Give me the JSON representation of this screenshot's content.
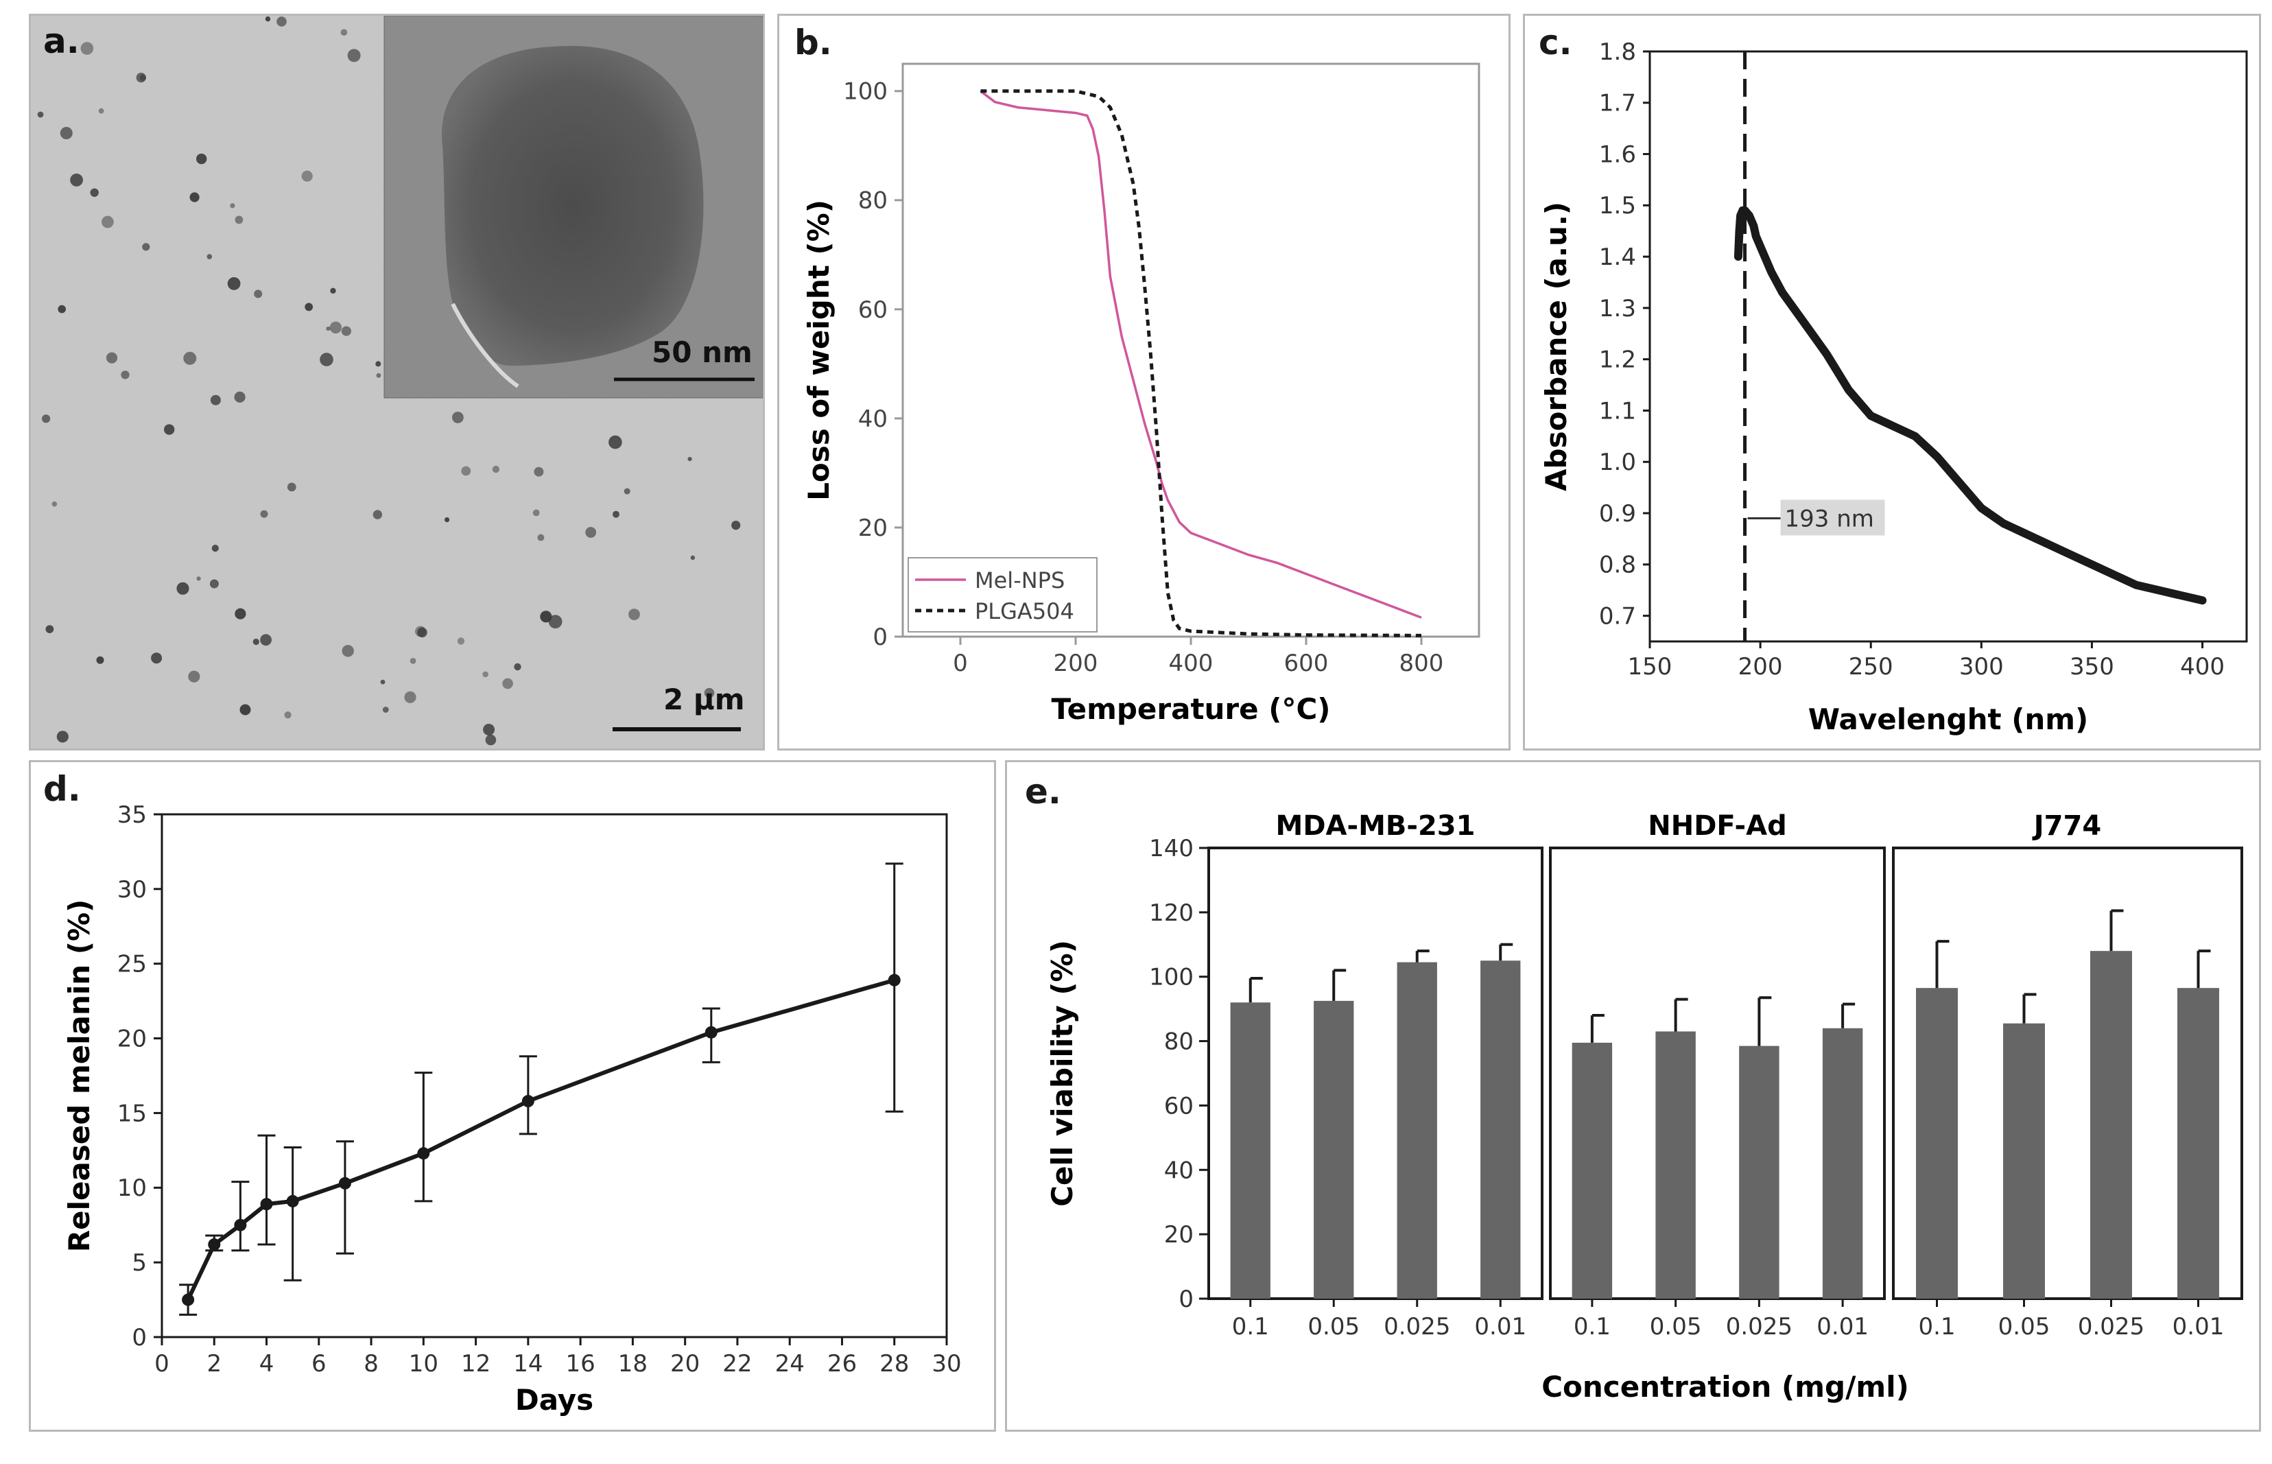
{
  "panels": {
    "a": {
      "label": "a.",
      "main_scale_label": "2 µm",
      "inset_scale_label": "50 nm"
    }
  },
  "chart_data": [
    {
      "id": "b",
      "panel_label": "b.",
      "type": "line",
      "title": "",
      "xlabel": "Temperature (°C)",
      "ylabel": "Loss of weight (%)",
      "xlim": [
        -100,
        900
      ],
      "ylim": [
        0,
        105
      ],
      "xticks": [
        0,
        200,
        400,
        600,
        800
      ],
      "yticks": [
        0,
        20,
        40,
        60,
        80,
        100
      ],
      "legend_position": "bottom-left",
      "series": [
        {
          "name": "Mel-NPS",
          "color": "#d0579b",
          "style": "solid",
          "x": [
            35,
            60,
            100,
            150,
            200,
            220,
            230,
            240,
            250,
            260,
            280,
            300,
            320,
            340,
            350,
            360,
            380,
            400,
            450,
            500,
            550,
            600,
            650,
            700,
            750,
            800
          ],
          "y": [
            100,
            98,
            97,
            96.5,
            96,
            95.5,
            93,
            88,
            78,
            66,
            55,
            47,
            39,
            32,
            28,
            25,
            21,
            19,
            17,
            15,
            13.5,
            11.5,
            9.5,
            7.5,
            5.5,
            3.5
          ]
        },
        {
          "name": "PLGA504",
          "color": "#1a1a1a",
          "style": "dashed",
          "x": [
            35,
            100,
            200,
            240,
            260,
            280,
            300,
            310,
            320,
            330,
            340,
            350,
            360,
            370,
            380,
            400,
            500,
            600,
            800
          ],
          "y": [
            100,
            100,
            100,
            99,
            97,
            92,
            83,
            75,
            64,
            52,
            38,
            22,
            8,
            3,
            1.5,
            1,
            0.5,
            0.3,
            0.2
          ]
        }
      ]
    },
    {
      "id": "c",
      "panel_label": "c.",
      "type": "line",
      "title": "",
      "xlabel": "Wavelenght (nm)",
      "ylabel": "Absorbance (a.u.)",
      "xlim": [
        150,
        420
      ],
      "ylim": [
        0.65,
        1.8
      ],
      "xticks": [
        150,
        200,
        250,
        300,
        350,
        400
      ],
      "yticks": [
        0.7,
        0.8,
        0.9,
        1.0,
        1.1,
        1.2,
        1.3,
        1.4,
        1.5,
        1.6,
        1.7,
        1.8
      ],
      "ytick_labels": [
        "0.7",
        "0.8",
        "0.9",
        "1.0",
        "1.1",
        "1.2",
        "1.3",
        "1.4",
        "1.5",
        "1.6",
        "1.7",
        "1.8"
      ],
      "vline_x": 193,
      "annotation": "193 nm",
      "series": [
        {
          "name": "Absorbance",
          "color": "#1a1a1a",
          "x": [
            190,
            190.5,
            191,
            192,
            193,
            194,
            195,
            196,
            197,
            198,
            200,
            205,
            210,
            220,
            230,
            240,
            250,
            260,
            270,
            280,
            290,
            300,
            310,
            320,
            330,
            340,
            350,
            360,
            370,
            380,
            390,
            400
          ],
          "y": [
            1.4,
            1.45,
            1.48,
            1.49,
            1.49,
            1.485,
            1.48,
            1.47,
            1.46,
            1.44,
            1.42,
            1.37,
            1.33,
            1.27,
            1.21,
            1.14,
            1.09,
            1.07,
            1.05,
            1.01,
            0.96,
            0.91,
            0.88,
            0.86,
            0.84,
            0.82,
            0.8,
            0.78,
            0.76,
            0.75,
            0.74,
            0.73
          ]
        }
      ]
    },
    {
      "id": "d",
      "panel_label": "d.",
      "type": "line",
      "title": "",
      "xlabel": "Days",
      "ylabel": "Released melanin (%)",
      "xlim": [
        0,
        30
      ],
      "ylim": [
        0,
        35
      ],
      "xticks": [
        0,
        2,
        4,
        6,
        8,
        10,
        12,
        14,
        16,
        18,
        20,
        22,
        24,
        26,
        28,
        30
      ],
      "yticks": [
        0,
        5,
        10,
        15,
        20,
        25,
        30,
        35
      ],
      "series": [
        {
          "name": "Released melanin",
          "color": "#1a1a1a",
          "x": [
            1,
            2,
            3,
            4,
            5,
            7,
            10,
            14,
            21,
            28
          ],
          "y": [
            2.5,
            6.2,
            7.5,
            8.9,
            9.1,
            10.3,
            12.3,
            15.8,
            20.4,
            23.9
          ],
          "err_low": [
            1.5,
            5.8,
            5.8,
            6.2,
            3.8,
            5.6,
            9.1,
            13.6,
            18.4,
            15.1
          ],
          "err_high": [
            3.5,
            6.8,
            10.4,
            13.5,
            12.7,
            13.1,
            17.7,
            18.8,
            22.0,
            31.7
          ]
        }
      ]
    },
    {
      "id": "e",
      "panel_label": "e.",
      "type": "bar",
      "title": "",
      "xlabel": "Concentration (mg/ml)",
      "ylabel": "Cell viability (%)",
      "ylim": [
        0,
        140
      ],
      "yticks": [
        0,
        20,
        40,
        60,
        80,
        100,
        120,
        140
      ],
      "categories": [
        "0.1",
        "0.05",
        "0.025",
        "0.01"
      ],
      "bar_color": "#666666",
      "series": [
        {
          "name": "MDA-MB-231",
          "values": [
            92,
            92.5,
            104.5,
            105
          ],
          "errors": [
            7.5,
            9.5,
            3.5,
            5
          ]
        },
        {
          "name": "NHDF-Ad",
          "values": [
            79.5,
            83,
            78.5,
            84
          ],
          "errors": [
            8.5,
            10,
            15,
            7.5
          ]
        },
        {
          "name": "J774",
          "values": [
            96.5,
            85.5,
            108,
            96.5
          ],
          "errors": [
            14.5,
            9,
            12.5,
            11.5
          ]
        }
      ]
    }
  ]
}
